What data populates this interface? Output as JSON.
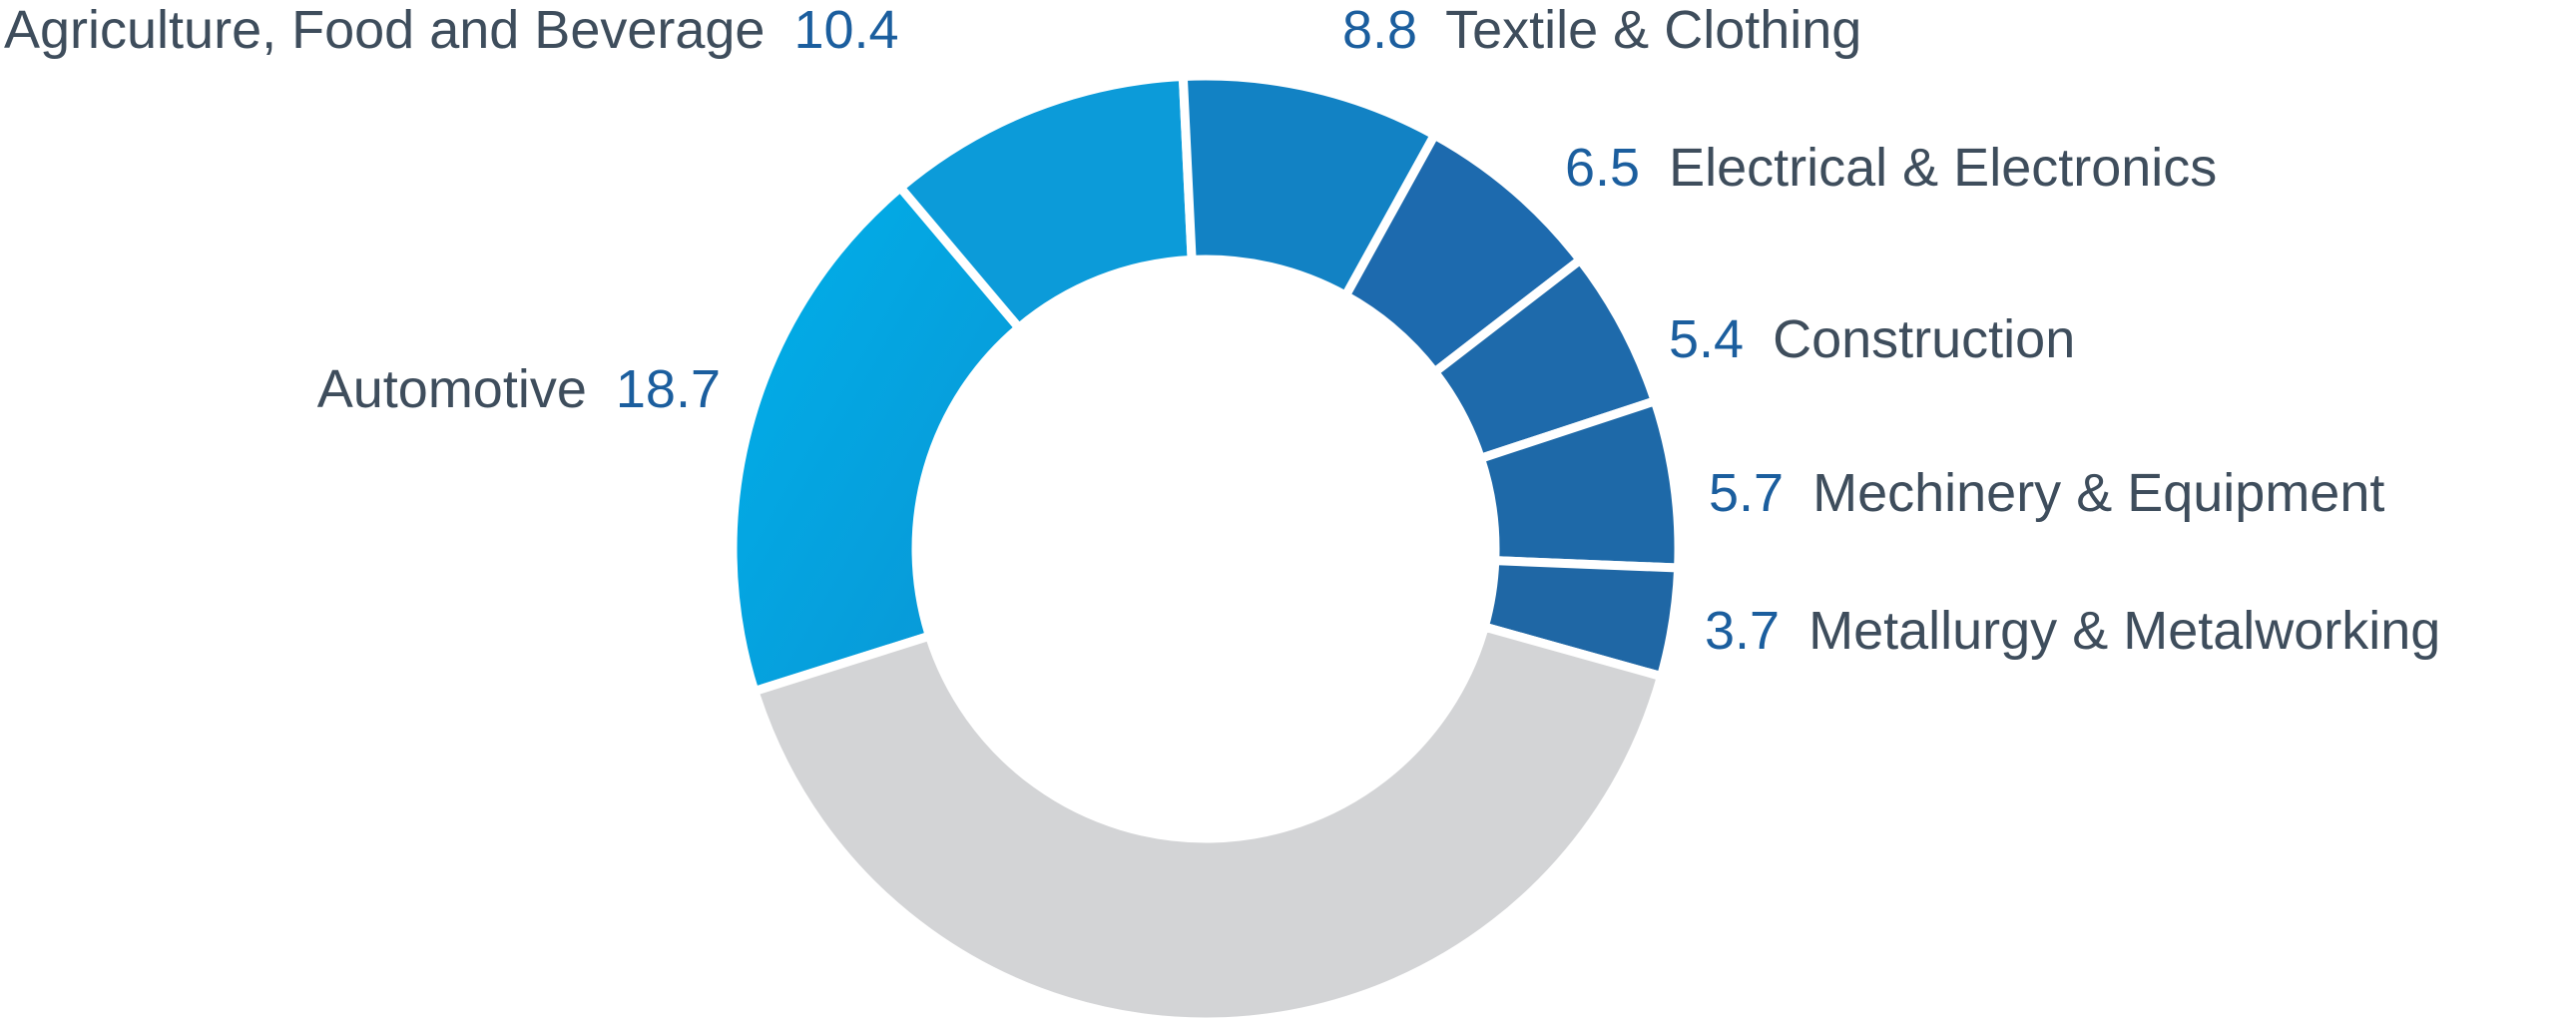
{
  "chart_data": {
    "type": "pie",
    "donut": true,
    "slices": [
      {
        "label": "Automotive",
        "value": 18.7,
        "color": "#0aa5e0"
      },
      {
        "label": "Agriculture, Food and Beverage",
        "value": 10.4,
        "color": "#0c9bd9"
      },
      {
        "label": "Textile & Clothing",
        "value": 8.8,
        "color": "#1282c4"
      },
      {
        "label": "Electrical & Electronics",
        "value": 6.5,
        "color": "#1d6aae"
      },
      {
        "label": "Construction",
        "value": 5.4,
        "color": "#1e6aab"
      },
      {
        "label": "Mechinery & Equipment",
        "value": 5.7,
        "color": "#1e69a8"
      },
      {
        "label": "Metallurgy & Metalworking",
        "value": 3.7,
        "color": "#1f67a5"
      },
      {
        "label": "",
        "value": 40.8,
        "color": "#d3d4d6"
      }
    ],
    "title": "",
    "legend": "none"
  }
}
